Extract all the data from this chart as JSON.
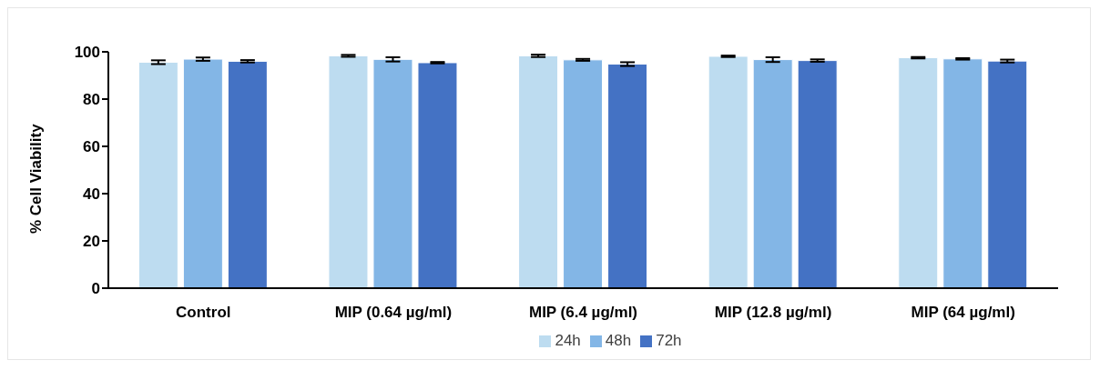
{
  "chart_data": {
    "type": "bar",
    "ylabel": "% Cell Viability",
    "categories": [
      "Control",
      "MIP (0.64 µg/ml)",
      "MIP (6.4 µg/ml)",
      "MIP (12.8 µg/ml)",
      "MIP (64 µg/ml)"
    ],
    "series": [
      {
        "name": "24h",
        "color": "#bddcf0",
        "values": [
          95.6,
          98.3,
          98.3,
          98.1,
          97.5
        ],
        "errors": [
          0.8,
          0.4,
          0.5,
          0.3,
          0.3
        ]
      },
      {
        "name": "48h",
        "color": "#83b6e6",
        "values": [
          96.9,
          96.8,
          96.6,
          96.7,
          97.0
        ],
        "errors": [
          0.7,
          0.9,
          0.4,
          1.0,
          0.3
        ]
      },
      {
        "name": "72h",
        "color": "#4472c4",
        "values": [
          96.0,
          95.4,
          94.8,
          96.3,
          96.1
        ],
        "errors": [
          0.5,
          0.3,
          0.8,
          0.5,
          0.6
        ]
      }
    ],
    "ylim": [
      0,
      100
    ],
    "yticks": [
      0,
      20,
      40,
      60,
      80,
      100
    ],
    "grid": false,
    "legend": "bottom"
  }
}
